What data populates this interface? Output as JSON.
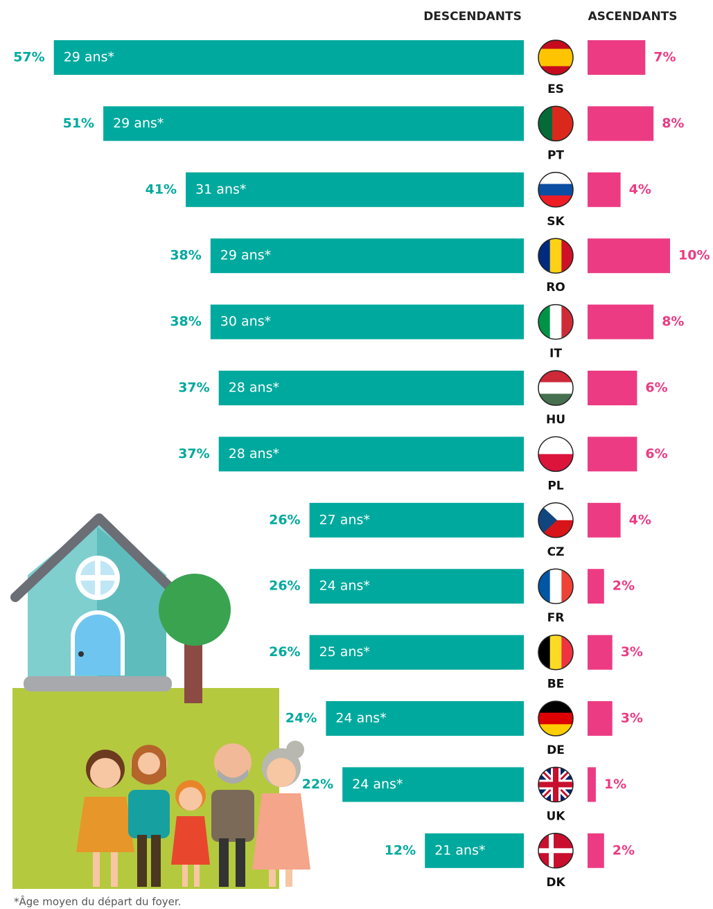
{
  "chart_data": {
    "type": "bar",
    "orientation": "horizontal",
    "categories": [
      "ES",
      "PT",
      "SK",
      "RO",
      "IT",
      "HU",
      "PL",
      "CZ",
      "FR",
      "BE",
      "DE",
      "UK",
      "DK"
    ],
    "series": [
      {
        "name": "DESCENDANTS",
        "color": "#00a99d",
        "values": [
          57,
          51,
          41,
          38,
          38,
          37,
          37,
          26,
          26,
          26,
          24,
          22,
          12
        ],
        "value_labels": [
          "57%",
          "51%",
          "41%",
          "38%",
          "38%",
          "37%",
          "37%",
          "26%",
          "26%",
          "26%",
          "24%",
          "22%",
          "12%"
        ],
        "bar_labels": [
          "29 ans*",
          "29 ans*",
          "31 ans*",
          "29 ans*",
          "30 ans*",
          "28 ans*",
          "28 ans*",
          "27 ans*",
          "24 ans*",
          "25 ans*",
          "24 ans*",
          "24 ans*",
          "21 ans*"
        ]
      },
      {
        "name": "ASCENDANTS",
        "color": "#ec3b83",
        "values": [
          7,
          8,
          4,
          10,
          8,
          6,
          6,
          4,
          2,
          3,
          3,
          1,
          2
        ],
        "value_labels": [
          "7%",
          "8%",
          "4%",
          "10%",
          "8%",
          "6%",
          "6%",
          "4%",
          "2%",
          "3%",
          "3%",
          "1%",
          "2%"
        ]
      }
    ],
    "note": "*Âge moyen du départ du foyer."
  }
}
